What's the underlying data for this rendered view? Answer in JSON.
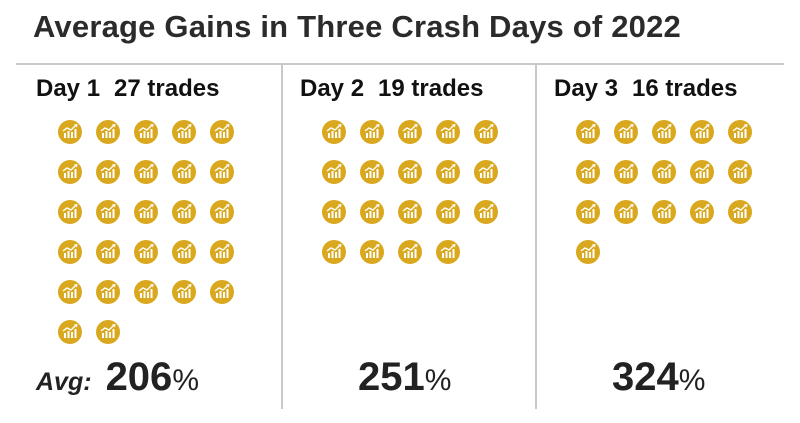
{
  "title": "Average Gains in Three Crash Days of 2022",
  "avg_label": "Avg:",
  "icon": "coin-chart-icon",
  "colors": {
    "coin": "#d9a81e",
    "glyph": "#ffffff",
    "text": "#222222",
    "rule": "#c9c9c9"
  },
  "chart_data": {
    "type": "pictograph",
    "title": "Average Gains in Three Crash Days of 2022",
    "categories": [
      "Day 1",
      "Day 2",
      "Day 3"
    ],
    "series": [
      {
        "name": "trades",
        "values": [
          27,
          19,
          16
        ]
      },
      {
        "name": "Avg:",
        "values": [
          206,
          251,
          324
        ]
      }
    ],
    "units": {
      "trades": "trades",
      "gain": "%"
    }
  },
  "panels": [
    {
      "day": "Day 1",
      "trades": "27 trades",
      "trade_count": 27,
      "avg": "206",
      "pct": "%"
    },
    {
      "day": "Day 2",
      "trades": "19 trades",
      "trade_count": 19,
      "avg": "251",
      "pct": "%"
    },
    {
      "day": "Day 3",
      "trades": "16 trades",
      "trade_count": 16,
      "avg": "324",
      "pct": "%"
    }
  ]
}
